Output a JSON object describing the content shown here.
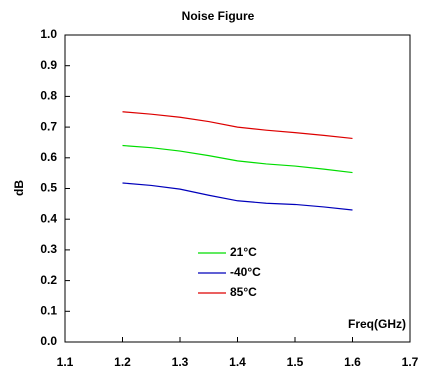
{
  "chart_data": {
    "type": "line",
    "title": "Noise Figure",
    "x_label": "Freq(GHz)",
    "y_label": "dB",
    "x": [
      1.2,
      1.25,
      1.3,
      1.35,
      1.4,
      1.45,
      1.5,
      1.55,
      1.6
    ],
    "series": [
      {
        "name": "21°C",
        "color": "#00dd00",
        "values": [
          0.64,
          0.633,
          0.622,
          0.607,
          0.59,
          0.58,
          0.573,
          0.563,
          0.552
        ]
      },
      {
        "name": "-40°C",
        "color": "#0000bb",
        "values": [
          0.518,
          0.51,
          0.498,
          0.478,
          0.46,
          0.452,
          0.448,
          0.44,
          0.43
        ]
      },
      {
        "name": "85°C",
        "color": "#dd0000",
        "values": [
          0.75,
          0.742,
          0.732,
          0.718,
          0.7,
          0.69,
          0.682,
          0.673,
          0.663
        ]
      }
    ],
    "xlim": [
      1.1,
      1.7
    ],
    "xticks": [
      1.1,
      1.2,
      1.3,
      1.4,
      1.5,
      1.6,
      1.7
    ],
    "ylim": [
      0,
      1
    ],
    "yticks": [
      {
        "value": 0,
        "label": "0.0"
      },
      0.1,
      0.2,
      0.3,
      0.4,
      0.5,
      0.6,
      0.7,
      0.8,
      0.9,
      {
        "value": 1,
        "label": "1.0"
      }
    ],
    "grid": false
  }
}
